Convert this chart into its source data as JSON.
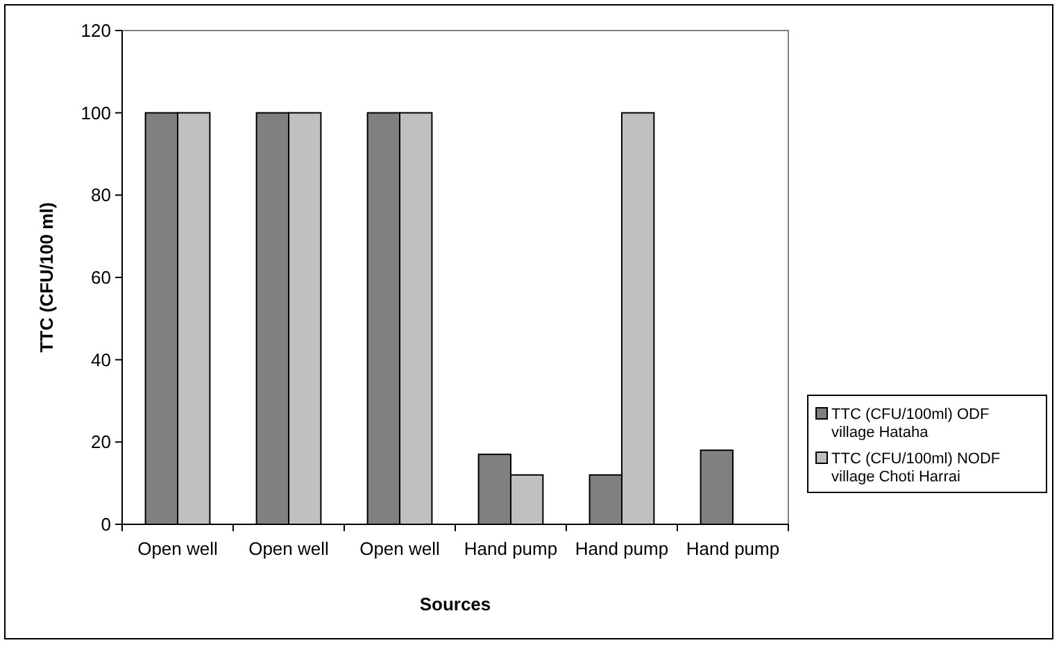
{
  "chart_data": {
    "type": "bar",
    "xlabel": "Sources",
    "ylabel": "TTC (CFU/100 ml)",
    "categories": [
      "Open well",
      "Open well",
      "Open well",
      "Hand pump",
      "Hand pump",
      "Hand pump"
    ],
    "series": [
      {
        "name": "TTC (CFU/100ml) ODF village Hataha",
        "color": "#808080",
        "values": [
          100,
          100,
          100,
          17,
          12,
          18
        ]
      },
      {
        "name": "TTC (CFU/100ml) NODF village Choti Harrai",
        "color": "#c0c0c0",
        "values": [
          100,
          100,
          100,
          12,
          100,
          null
        ]
      }
    ],
    "ylim": [
      0,
      120
    ],
    "yticks": [
      0,
      20,
      40,
      60,
      80,
      100,
      120
    ],
    "grid": false,
    "legend": "right"
  }
}
